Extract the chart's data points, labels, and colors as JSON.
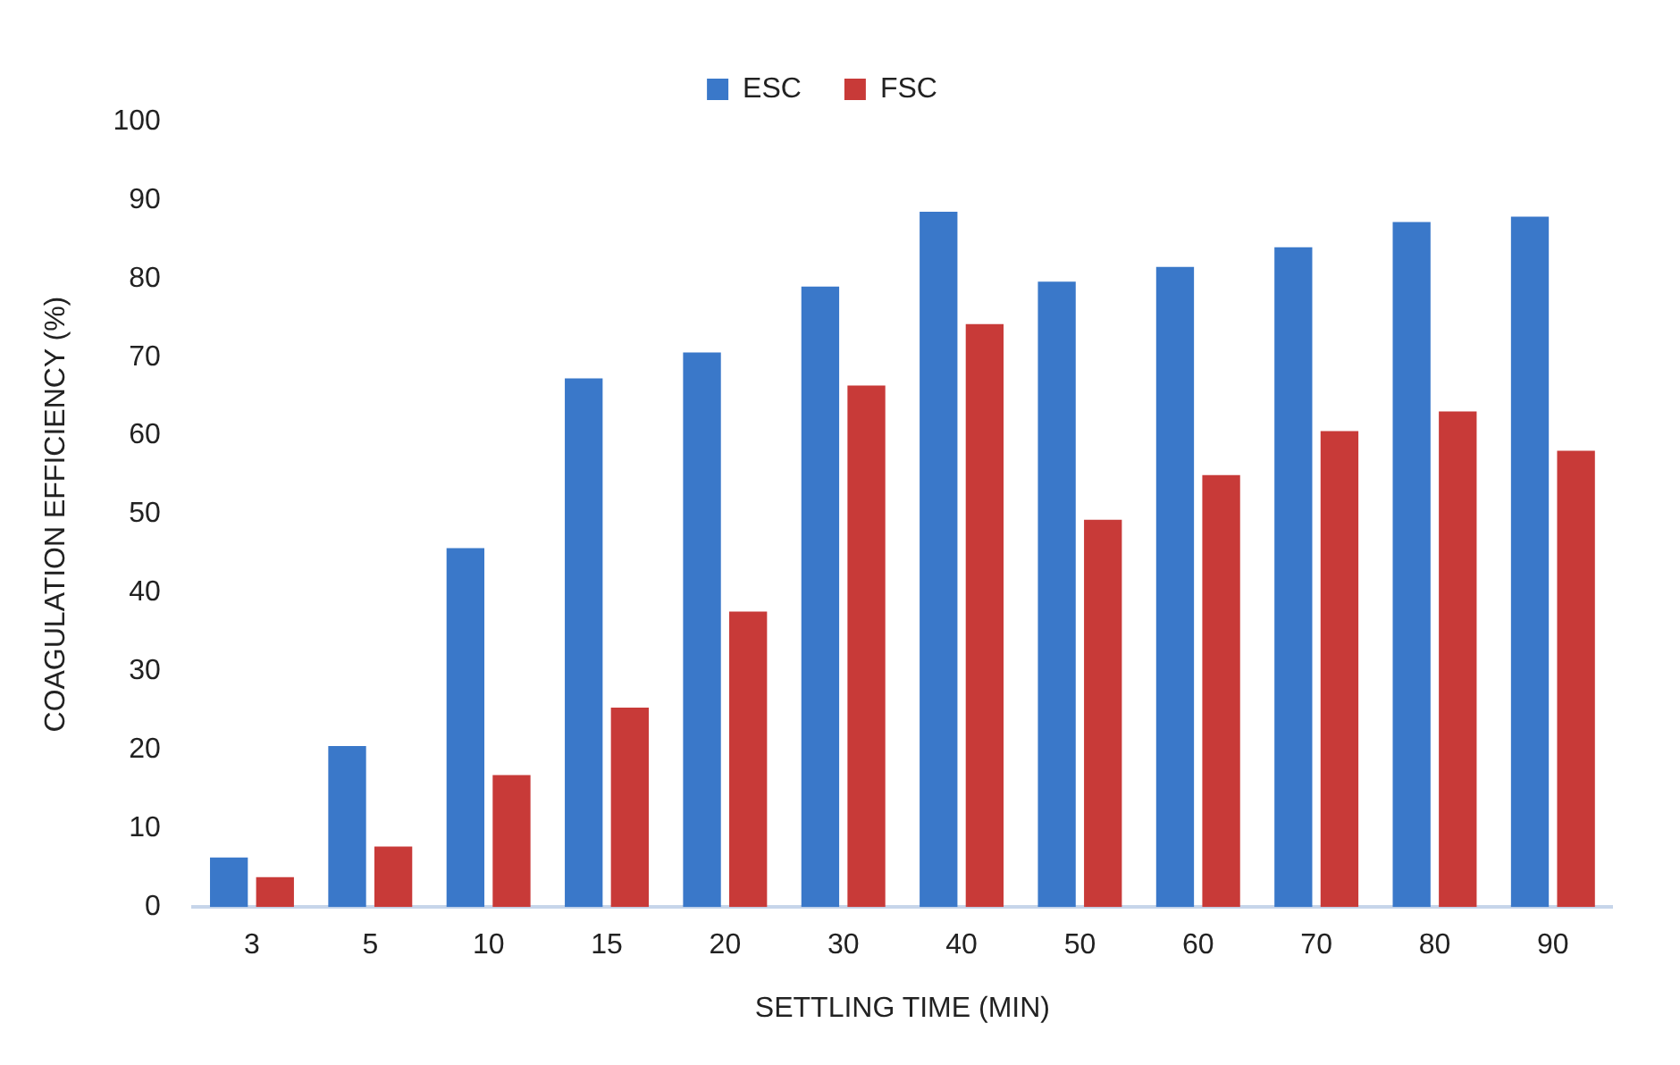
{
  "chart_data": {
    "type": "bar",
    "xlabel": "SETTLING TIME (MIN)",
    "ylabel": "COAGULATION EFFICIENCY (%)",
    "categories": [
      "3",
      "5",
      "10",
      "15",
      "20",
      "30",
      "40",
      "50",
      "60",
      "70",
      "80",
      "90"
    ],
    "series": [
      {
        "name": "ESC",
        "color": "#3a78c9",
        "values": [
          6.3,
          20.5,
          45.7,
          67.3,
          70.6,
          79.0,
          88.5,
          79.6,
          81.5,
          84.0,
          87.2,
          87.9
        ]
      },
      {
        "name": "FSC",
        "color": "#c83a38",
        "values": [
          3.8,
          7.7,
          16.8,
          25.4,
          37.6,
          66.4,
          74.2,
          49.3,
          55.0,
          60.6,
          63.1,
          58.1
        ]
      }
    ],
    "ylim": [
      0,
      100
    ],
    "yticks": [
      0,
      10,
      20,
      30,
      40,
      50,
      60,
      70,
      80,
      90,
      100
    ],
    "grid": false,
    "legend": "top"
  }
}
